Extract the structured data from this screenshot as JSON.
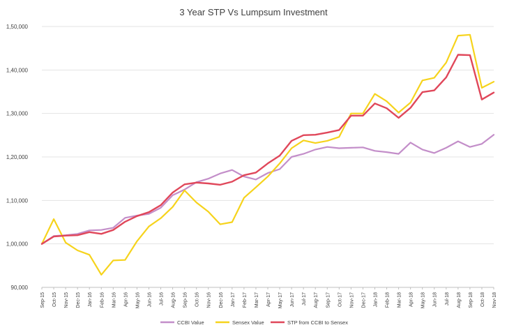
{
  "chart_data": {
    "type": "line",
    "title": "3 Year STP Vs Lumpsum Investment",
    "xlabel": "",
    "ylabel": "",
    "ylim": [
      90000,
      150000
    ],
    "yticks": [
      90000,
      100000,
      110000,
      120000,
      130000,
      140000,
      150000
    ],
    "ytick_labels": [
      "90,000",
      "1,00,000",
      "1,10,000",
      "1,20,000",
      "1,30,000",
      "1,40,000",
      "1,50,000"
    ],
    "grid": true,
    "legend_position": "bottom",
    "categories": [
      "Sep-15",
      "Oct-15",
      "Nov-15",
      "Dec-15",
      "Jan-16",
      "Feb-16",
      "Mar-16",
      "Apr-16",
      "May-16",
      "Jun-16",
      "Jul-16",
      "Aug-16",
      "Sep-16",
      "Oct-16",
      "Nov-16",
      "Dec-16",
      "Jan-17",
      "Feb-17",
      "Mar-17",
      "Apr-17",
      "May-17",
      "Jun-17",
      "Jul-17",
      "Aug-17",
      "Sep-17",
      "Oct-17",
      "Nov-17",
      "Dec-17",
      "Jan-18",
      "Feb-18",
      "Mar-18",
      "Apr-18",
      "May-18",
      "Jun-18",
      "Jul-18",
      "Aug-18",
      "Sep-18",
      "Oct-18",
      "Nov-18"
    ],
    "series": [
      {
        "name": "CCBI Value",
        "color": "#c38ec9",
        "values": [
          100000,
          101800,
          102000,
          102300,
          103100,
          103200,
          103700,
          106000,
          106500,
          106900,
          108300,
          111200,
          112500,
          114200,
          115000,
          116200,
          117000,
          115500,
          114800,
          116300,
          117200,
          120000,
          120700,
          121700,
          122300,
          122000,
          122100,
          122200,
          121400,
          121100,
          120700,
          123300,
          121700,
          120900,
          122100,
          123600,
          122300,
          123000,
          125100
        ]
      },
      {
        "name": "Sensex Value",
        "color": "#f6d31c",
        "values": [
          100000,
          105700,
          100300,
          98500,
          97500,
          92900,
          96200,
          96300,
          100600,
          104000,
          105900,
          108500,
          112300,
          109500,
          107400,
          104500,
          105000,
          110600,
          113000,
          115500,
          118500,
          122000,
          123800,
          123200,
          123700,
          124600,
          130000,
          130000,
          134500,
          132800,
          130200,
          132500,
          137600,
          138200,
          141700,
          147900,
          148100,
          135900,
          137300
        ]
      },
      {
        "name": "STP from CCBI to Sensex",
        "color": "#e0475a",
        "values": [
          100000,
          101700,
          101900,
          102000,
          102700,
          102300,
          103200,
          105100,
          106400,
          107300,
          108900,
          111800,
          113700,
          114100,
          113900,
          113600,
          114300,
          115800,
          116400,
          118500,
          120300,
          123700,
          125000,
          125100,
          125600,
          126200,
          129500,
          129500,
          132300,
          131200,
          129000,
          131300,
          134900,
          135300,
          138300,
          143500,
          143400,
          133200,
          134800
        ]
      }
    ]
  }
}
